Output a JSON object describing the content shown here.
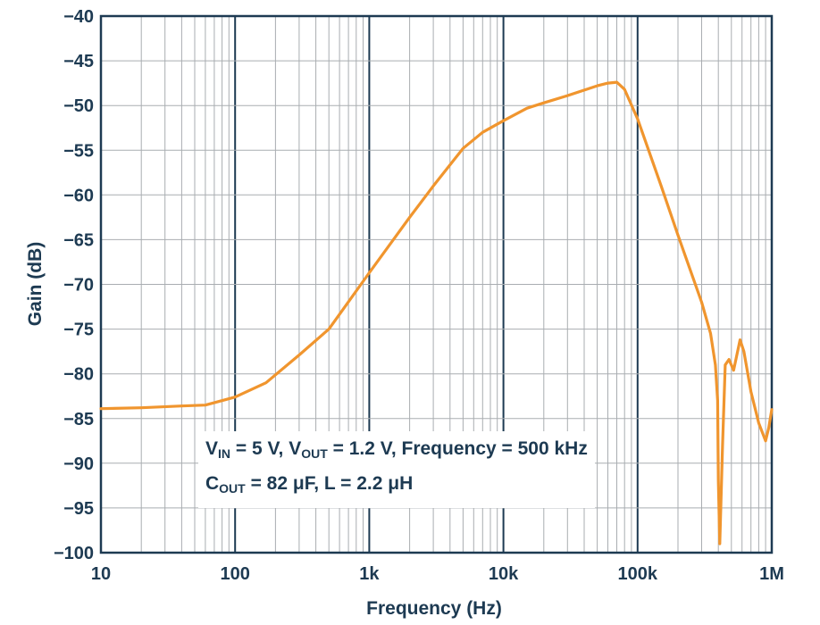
{
  "chart_data": {
    "type": "line",
    "title": "",
    "xlabel": "Frequency (Hz)",
    "ylabel": "Gain (dB)",
    "xscale": "log",
    "xlim": [
      10,
      1000000
    ],
    "ylim": [
      -100,
      -40
    ],
    "grid": true,
    "x_tick_values": [
      10,
      100,
      1000,
      10000,
      100000,
      1000000
    ],
    "x_tick_labels": [
      "10",
      "100",
      "1k",
      "10k",
      "100k",
      "1M"
    ],
    "y_tick_values": [
      -40,
      -45,
      -50,
      -55,
      -60,
      -65,
      -70,
      -75,
      -80,
      -85,
      -90,
      -95,
      -100
    ],
    "y_tick_labels": [
      "−40",
      "−45",
      "−50",
      "−55",
      "−60",
      "−65",
      "−70",
      "−75",
      "−80",
      "−85",
      "−90",
      "−95",
      "−100"
    ],
    "series": [
      {
        "name": "Gain",
        "color": "#f0952e",
        "x": [
          10,
          20,
          40,
          60,
          100,
          170,
          300,
          500,
          1000,
          2000,
          3000,
          5000,
          7000,
          10000,
          15000,
          20000,
          30000,
          50000,
          60000,
          70000,
          80000,
          100000,
          150000,
          200000,
          300000,
          350000,
          380000,
          395000,
          400000,
          410000,
          430000,
          450000,
          480000,
          520000,
          580000,
          620000,
          700000,
          800000,
          900000,
          950000,
          1000000
        ],
        "y": [
          -83.9,
          -83.8,
          -83.6,
          -83.5,
          -82.6,
          -81.0,
          -77.9,
          -75.0,
          -68.7,
          -62.5,
          -59.0,
          -54.8,
          -53.0,
          -51.7,
          -50.3,
          -49.7,
          -48.9,
          -47.8,
          -47.5,
          -47.4,
          -48.2,
          -51.5,
          -59.0,
          -64.5,
          -72.0,
          -75.5,
          -79.0,
          -83.0,
          -92.0,
          -99.0,
          -88.0,
          -79.0,
          -78.4,
          -79.6,
          -76.2,
          -77.5,
          -82.0,
          -85.5,
          -87.5,
          -86.0,
          -84.0
        ]
      }
    ],
    "annotation": {
      "line1": [
        {
          "text": "V",
          "sub": "IN"
        },
        {
          "text": " = 5 V, V",
          "sub": "OUT"
        },
        {
          "text": " = 1.2 V, Frequency = 500 kHz",
          "sub": ""
        }
      ],
      "line2": [
        {
          "text": "C",
          "sub": "OUT"
        },
        {
          "text": " = 82 μF, L = 2.2 μH",
          "sub": ""
        }
      ]
    },
    "colors": {
      "axis": "#1d3a52",
      "grid": "#a9adb1",
      "line": "#f0952e"
    }
  }
}
